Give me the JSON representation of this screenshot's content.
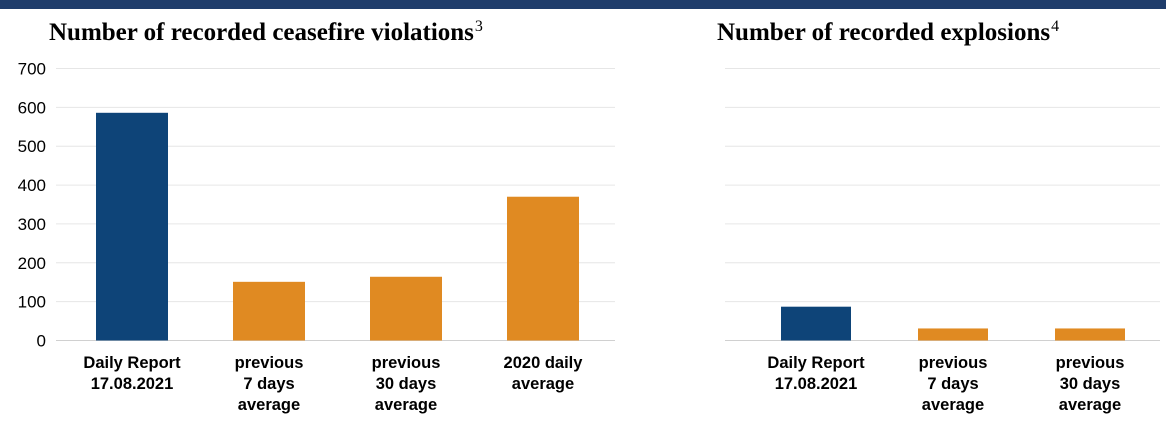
{
  "colors": {
    "top_band": "#1f3d6b",
    "primary_bar": "#0e4478",
    "comparison_bar": "#e08a22",
    "grid": "#e6e6e6"
  },
  "chart_data": [
    {
      "type": "bar",
      "title": "Number of recorded ceasefire violations",
      "footnote": "3",
      "categories": [
        [
          "Daily Report",
          "17.08.2021"
        ],
        [
          "previous",
          "7 days",
          "average"
        ],
        [
          "previous",
          "30 days",
          "average"
        ],
        [
          "2020 daily",
          "average"
        ]
      ],
      "values": [
        586,
        151,
        164,
        370
      ],
      "bar_colors": [
        "primary",
        "comparison",
        "comparison",
        "comparison"
      ],
      "ylim": [
        0,
        700
      ],
      "yticks": [
        0,
        100,
        200,
        300,
        400,
        500,
        600,
        700
      ],
      "grid": true
    },
    {
      "type": "bar",
      "title": "Number of recorded explosions",
      "footnote": "4",
      "categories": [
        [
          "Daily Report",
          "17.08.2021"
        ],
        [
          "previous",
          "7 days",
          "average"
        ],
        [
          "previous",
          "30 days",
          "average"
        ]
      ],
      "values": [
        87,
        31,
        31
      ],
      "bar_colors": [
        "primary",
        "comparison",
        "comparison"
      ],
      "ylim": [
        0,
        700
      ],
      "yticks": [],
      "grid": true
    }
  ]
}
